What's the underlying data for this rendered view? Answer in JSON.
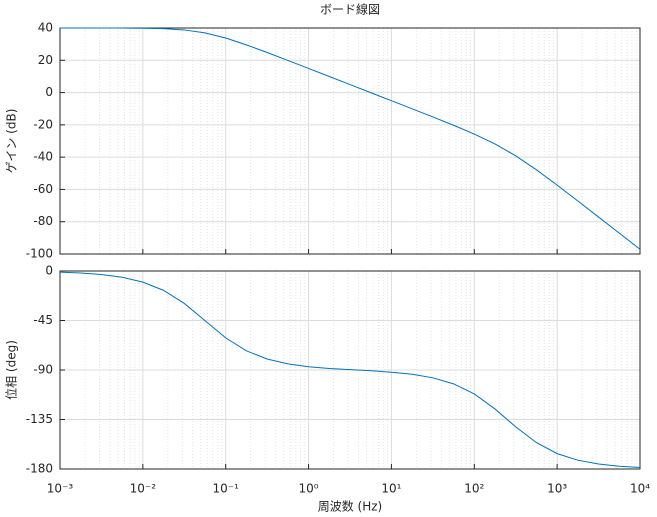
{
  "chart_data": [
    {
      "type": "line",
      "title": "ボード線図",
      "ylabel": "ゲイン (dB)",
      "xscale": "log",
      "grid": true,
      "minor_grid": true,
      "x": [
        0.001,
        0.001778,
        0.003162,
        0.005623,
        0.01,
        0.01778,
        0.03162,
        0.05623,
        0.1,
        0.1778,
        0.3162,
        0.5623,
        1,
        1.778,
        3.162,
        5.623,
        10,
        17.78,
        31.62,
        56.23,
        100,
        177.8,
        316.2,
        562.3,
        1000,
        1778,
        3162,
        5623,
        10000
      ],
      "series": [
        {
          "color": "#0072bd",
          "values": [
            40.0,
            40.0,
            39.99,
            39.96,
            39.86,
            39.58,
            38.8,
            36.97,
            33.78,
            29.55,
            24.83,
            19.92,
            14.95,
            9.96,
            4.96,
            -0.04,
            -5.05,
            -10.05,
            -15.11,
            -20.25,
            -25.69,
            -31.8,
            -39.18,
            -47.84,
            -57.34,
            -67.16,
            -77.11,
            -87.09,
            -97.08
          ]
        }
      ],
      "xlim": [
        0.001,
        10000
      ],
      "xticks": [
        0.001,
        0.01,
        0.1,
        1,
        10,
        100,
        1000,
        10000
      ],
      "ylim": [
        -100,
        40
      ],
      "yticks": [
        40,
        20,
        0,
        -20,
        -40,
        -60,
        -80,
        -100
      ]
    },
    {
      "type": "line",
      "ylabel": "位相 (deg)",
      "xlabel": "周波数 (Hz)",
      "xscale": "log",
      "grid": true,
      "minor_grid": true,
      "x": [
        0.001,
        0.001778,
        0.003162,
        0.005623,
        0.01,
        0.01778,
        0.03162,
        0.05623,
        0.1,
        0.1778,
        0.3162,
        0.5623,
        1,
        1.778,
        3.162,
        5.623,
        10,
        17.78,
        31.62,
        56.23,
        100,
        177.8,
        316.2,
        562.3,
        1000,
        1778,
        3162,
        5623,
        10000
      ],
      "series": [
        {
          "color": "#0072bd",
          "values": [
            -1.0,
            -1.8,
            -3.2,
            -5.7,
            -10.1,
            -17.6,
            -29.5,
            -45.1,
            -60.8,
            -72.6,
            -80.0,
            -84.4,
            -87.0,
            -88.6,
            -89.7,
            -90.7,
            -92.0,
            -93.9,
            -97.1,
            -102.6,
            -111.8,
            -125.4,
            -141.7,
            -156.0,
            -166.0,
            -172.0,
            -175.5,
            -177.5,
            -178.6
          ]
        }
      ],
      "xlim": [
        0.001,
        10000
      ],
      "xticks": [
        {
          "value": 0.001,
          "label": "10⁻³"
        },
        {
          "value": 0.01,
          "label": "10⁻²"
        },
        {
          "value": 0.1,
          "label": "10⁻¹"
        },
        {
          "value": 1,
          "label": "10⁰"
        },
        {
          "value": 10,
          "label": "10¹"
        },
        {
          "value": 100,
          "label": "10²"
        },
        {
          "value": 1000,
          "label": "10³"
        },
        {
          "value": 10000,
          "label": "10⁴"
        }
      ],
      "ylim": [
        -180,
        0
      ],
      "yticks": [
        0,
        -45,
        -90,
        -135,
        -180
      ]
    }
  ]
}
